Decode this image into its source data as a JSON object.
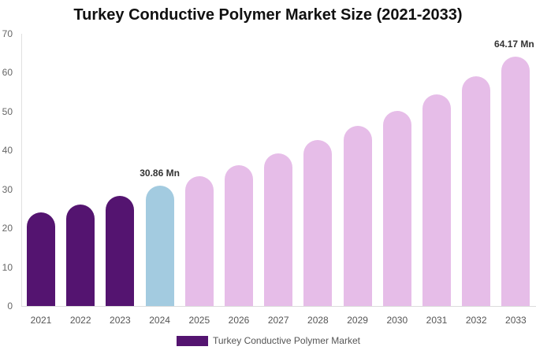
{
  "chart_data": {
    "type": "bar",
    "title": "Turkey Conductive Polymer Market Size (2021-2033)",
    "xlabel": "",
    "ylabel": "",
    "ylim": [
      0,
      70
    ],
    "yticks": [
      0,
      10,
      20,
      30,
      40,
      50,
      60,
      70
    ],
    "grid": false,
    "legend_position": "bottom",
    "categories": [
      "2021",
      "2022",
      "2023",
      "2024",
      "2025",
      "2026",
      "2027",
      "2028",
      "2029",
      "2030",
      "2031",
      "2032",
      "2033"
    ],
    "series": [
      {
        "name": "Turkey Conductive Polymer Market",
        "values": [
          24.0,
          26.1,
          28.3,
          30.86,
          33.4,
          36.2,
          39.2,
          42.6,
          46.3,
          50.2,
          54.4,
          59.0,
          64.17
        ]
      }
    ],
    "bar_colors": [
      "#541470",
      "#541470",
      "#541470",
      "#a3cbe0",
      "#e6bde8",
      "#e6bde8",
      "#e6bde8",
      "#e6bde8",
      "#e6bde8",
      "#e6bde8",
      "#e6bde8",
      "#e6bde8",
      "#e6bde8"
    ],
    "annotations": [
      {
        "category": "2024",
        "text": "30.86 Mn"
      },
      {
        "category": "2033",
        "text": "64.17 Mn"
      }
    ]
  },
  "legend": {
    "label": "Turkey Conductive Polymer Market",
    "color": "#541470"
  }
}
